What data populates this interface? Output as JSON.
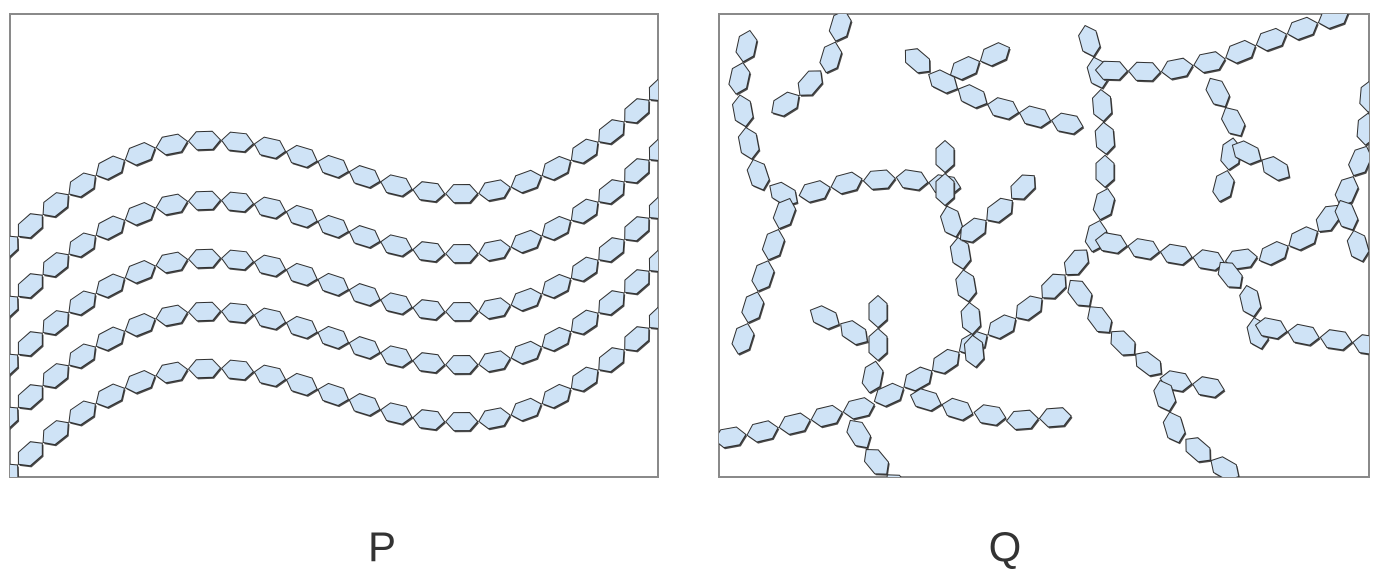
{
  "figure": {
    "colors": {
      "bead_fill": "#cfe3f6",
      "bead_stroke": "#2f2f2f",
      "frame_stroke": "#8a8a8a"
    },
    "panels": [
      {
        "label": "P",
        "kind": "unbranched-parallel-chains",
        "icon": "hexagon-bead-chain"
      },
      {
        "label": "Q",
        "kind": "branched-network-chains",
        "icon": "hexagon-bead-chain"
      }
    ]
  }
}
